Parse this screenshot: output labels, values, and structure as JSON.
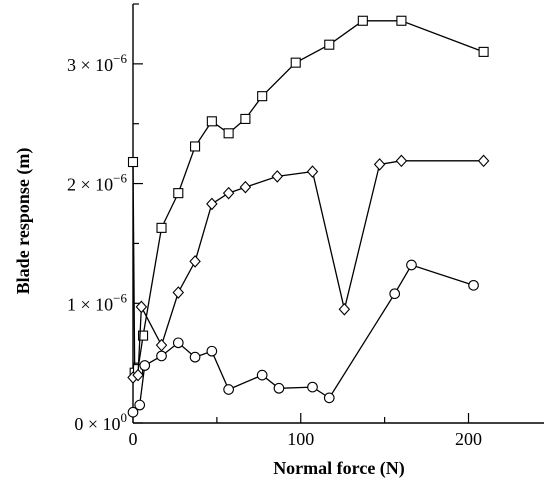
{
  "chart_data": {
    "type": "line",
    "title": "",
    "xlabel": "Normal force (N)",
    "ylabel": "Blade response (m)",
    "xlim": [
      0,
      245
    ],
    "ylim": [
      0,
      3.5
    ],
    "y_unit_exponent": -6,
    "x_ticks": [
      {
        "value": 0,
        "label": "0"
      },
      {
        "value": 100,
        "label": "100"
      },
      {
        "value": 200,
        "label": "200"
      }
    ],
    "y_ticks": [
      {
        "value": 0,
        "mantissa": "0",
        "exponent": "0"
      },
      {
        "value": 1,
        "mantissa": "1",
        "exponent": "−6"
      },
      {
        "value": 2,
        "mantissa": "2",
        "exponent": "−6"
      },
      {
        "value": 3,
        "mantissa": "3",
        "exponent": "−6"
      }
    ],
    "grid": false,
    "legend": "none",
    "series": [
      {
        "marker": "square",
        "x": [
          0,
          1,
          3,
          6,
          17,
          27,
          37,
          47,
          57,
          67,
          77,
          97,
          117,
          137,
          160,
          209
        ],
        "y": [
          2.18,
          0.42,
          0.45,
          0.73,
          1.63,
          1.92,
          2.31,
          2.52,
          2.42,
          2.54,
          2.73,
          3.01,
          3.16,
          3.36,
          3.36,
          3.1
        ]
      },
      {
        "marker": "diamond",
        "x": [
          0,
          3,
          5,
          17,
          27,
          37,
          47,
          57,
          67,
          86,
          107,
          126,
          147,
          160,
          209
        ],
        "y": [
          0.38,
          0.4,
          0.97,
          0.65,
          1.09,
          1.35,
          1.83,
          1.92,
          1.97,
          2.06,
          2.1,
          0.95,
          2.16,
          2.19,
          2.19
        ]
      },
      {
        "marker": "circle",
        "x": [
          0,
          4,
          7,
          17,
          27,
          37,
          47,
          57,
          77,
          87,
          107,
          117,
          156,
          166,
          203
        ],
        "y": [
          0.09,
          0.15,
          0.48,
          0.56,
          0.67,
          0.55,
          0.6,
          0.28,
          0.4,
          0.29,
          0.3,
          0.21,
          1.08,
          1.32,
          1.15
        ]
      }
    ]
  }
}
